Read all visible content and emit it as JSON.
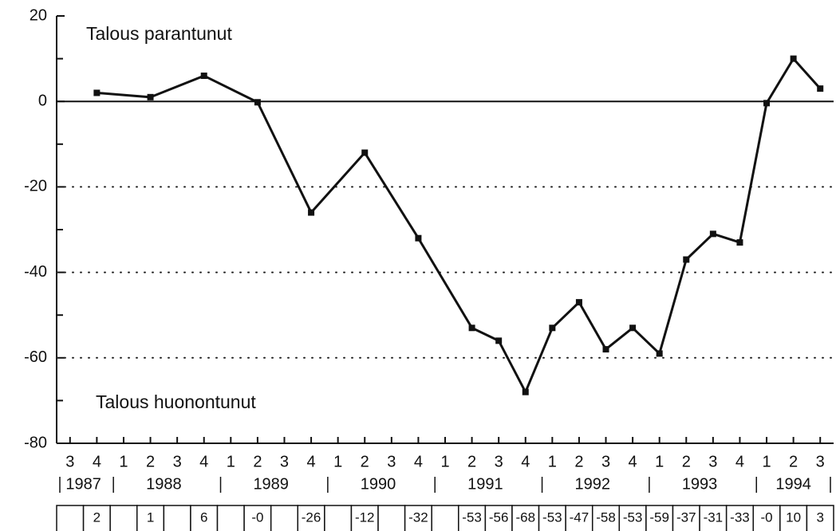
{
  "chart_data": {
    "type": "line",
    "annotations": [
      "Talous parantunut",
      "Talous huonontunut"
    ],
    "categories": [
      "3",
      "4",
      "1",
      "2",
      "3",
      "4",
      "1",
      "2",
      "3",
      "4",
      "1",
      "2",
      "3",
      "4",
      "1",
      "2",
      "3",
      "4",
      "1",
      "2",
      "3",
      "4",
      "1",
      "2",
      "3",
      "4",
      "1",
      "2",
      "3"
    ],
    "years": [
      "1987",
      "1988",
      "1989",
      "1990",
      "1991",
      "1992",
      "1993",
      "1994"
    ],
    "values": [
      null,
      2,
      null,
      1,
      null,
      6,
      null,
      -0.2,
      null,
      -26,
      null,
      -12,
      null,
      -32,
      null,
      -53,
      -56,
      -68,
      -53,
      -47,
      -58,
      -53,
      -59,
      -37,
      -31,
      -33,
      -0.4,
      10,
      3
    ],
    "value_labels": [
      null,
      "2",
      null,
      "1",
      null,
      "6",
      null,
      "-0",
      null,
      "-26",
      null,
      "-12",
      null,
      "-32",
      null,
      "-53",
      "-56",
      "-68",
      "-53",
      "-47",
      "-58",
      "-53",
      "-59",
      "-37",
      "-31",
      "-33",
      "-0",
      "10",
      "3"
    ],
    "color": "#111111",
    "ylim": [
      -80,
      20
    ],
    "yticks": [
      -80,
      -60,
      -40,
      -20,
      0,
      20
    ],
    "yminorticks": [
      -70,
      -50,
      -30,
      -10,
      10
    ],
    "grid": true
  }
}
